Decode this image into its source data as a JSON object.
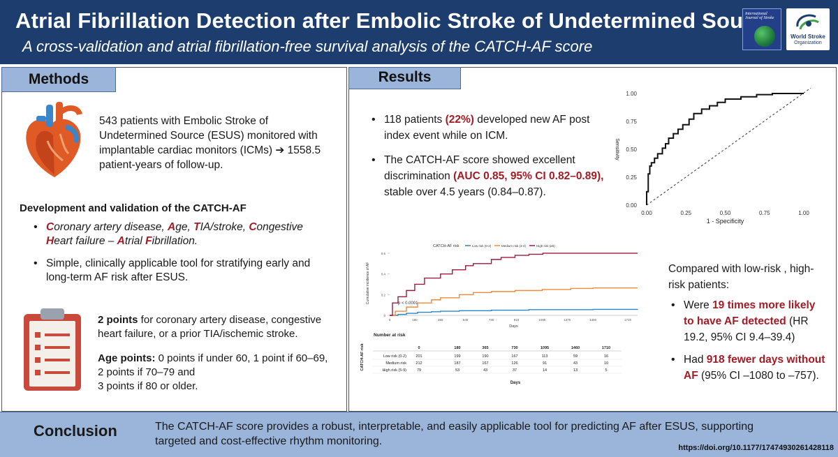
{
  "header": {
    "title": "Atrial Fibrillation Detection after Embolic Stroke of Undetermined Source",
    "subtitle": "A cross-validation and atrial fibrillation-free survival analysis of the CATCH-AF score",
    "journal_cover": "International Journal of Stroke",
    "wso_name": "World Stroke",
    "wso_name2": "Organization"
  },
  "methods": {
    "tab": "Methods",
    "intro": "543 patients with Embolic Stroke of Undetermined Source (ESUS) monitored with implantable cardiac monitors (ICMs) ➔ 1558.5 patient-years of follow-up.",
    "dev_title": "Development and validation of the CATCH-AF",
    "acronym": {
      "l1": "C",
      "t1": "oronary artery disease, ",
      "l2": "A",
      "t2": "ge, ",
      "l3": "T",
      "t3": "IA/stroke, ",
      "l4": "C",
      "t4": "ongestive ",
      "l5": "H",
      "t5": "eart failure – ",
      "l6": "A",
      "t6": "trial ",
      "l7": "F",
      "t7": "ibrillation."
    },
    "bullet2": "Simple, clinically applicable tool for stratifying early and long-term AF risk after ESUS.",
    "points1_bold": "2 points",
    "points1_rest": " for coronary artery disease, congestive heart failure, or a prior TIA/ischemic stroke.",
    "points2_bold": "Age points:",
    "points2_rest": " 0 points if under 60, 1 point if 60–69, 2 points if 70–79 and",
    "points2_line2": "3 points if 80 or older."
  },
  "results": {
    "tab": "Results",
    "b1_pre": "118 patients ",
    "b1_bold": "(22%)",
    "b1_post": " developed new AF post index event while on ICM.",
    "b2_pre": "The CATCH-AF score showed excellent discrimination ",
    "b2_bold": "(AUC 0.85, 95% CI 0.82–0.89),",
    "b2_post": " stable over 4.5 years (0.84–0.87).",
    "compare_intro": "Compared with low-risk , high-risk patients:",
    "c1_pre": "Were ",
    "c1_bold": "19 times more likely to have AF detected",
    "c1_post": " (HR 19.2, 95% CI 9.4–39.4)",
    "c2_pre": "Had ",
    "c2_bold": "918 fewer days without AF",
    "c2_post": " (95% CI –1080 to –757)."
  },
  "chart_data": [
    {
      "type": "line",
      "title": "",
      "xlabel": "1 - Specificity",
      "ylabel": "Sensitivity",
      "xlim": [
        0,
        1
      ],
      "ylim": [
        0,
        1
      ],
      "x_ticks": [
        "0.00",
        "0.25",
        "0.50",
        "0.75",
        "1.00"
      ],
      "y_ticks": [
        "0.00",
        "0.25",
        "0.50",
        "0.75",
        "1.00"
      ],
      "series": [
        {
          "name": "ROC",
          "x": [
            0.0,
            0.01,
            0.02,
            0.03,
            0.05,
            0.07,
            0.1,
            0.12,
            0.14,
            0.17,
            0.2,
            0.23,
            0.27,
            0.3,
            0.35,
            0.4,
            0.45,
            0.5,
            0.6,
            0.7,
            0.8,
            0.9,
            1.0
          ],
          "y": [
            0.0,
            0.12,
            0.28,
            0.35,
            0.38,
            0.42,
            0.46,
            0.51,
            0.55,
            0.6,
            0.64,
            0.68,
            0.72,
            0.77,
            0.82,
            0.86,
            0.89,
            0.92,
            0.95,
            0.97,
            0.99,
            1.0,
            1.0
          ]
        },
        {
          "name": "Reference",
          "x": [
            0,
            1
          ],
          "y": [
            0,
            1
          ]
        }
      ]
    },
    {
      "type": "line",
      "legend_title": "CATCH-AF risk",
      "xlabel": "Days",
      "ylabel": "Cumulative incidence of AF",
      "annotation": "p < 0.0001",
      "xlim": [
        0,
        1780
      ],
      "ylim": [
        0,
        0.62
      ],
      "x_ticks": [
        0,
        180,
        365,
        545,
        730,
        910,
        1095,
        1275,
        1460,
        1710
      ],
      "y_ticks": [
        0,
        0.2,
        0.4,
        0.6
      ],
      "series": [
        {
          "name": "Low risk (0-2)",
          "color": "#2a86c9",
          "x": [
            0,
            60,
            120,
            200,
            300,
            365,
            500,
            730,
            1000,
            1460,
            1780
          ],
          "y": [
            0,
            0.01,
            0.02,
            0.03,
            0.035,
            0.04,
            0.045,
            0.05,
            0.055,
            0.058,
            0.06
          ]
        },
        {
          "name": "Medium risk (3-4)",
          "color": "#ef8a3a",
          "x": [
            0,
            40,
            120,
            200,
            300,
            365,
            500,
            600,
            730,
            900,
            1095,
            1300,
            1460,
            1780
          ],
          "y": [
            0,
            0.04,
            0.08,
            0.12,
            0.15,
            0.17,
            0.2,
            0.22,
            0.23,
            0.24,
            0.25,
            0.26,
            0.265,
            0.265
          ]
        },
        {
          "name": "High risk (≥5)",
          "color": "#9c1b3c",
          "x": [
            0,
            20,
            60,
            120,
            180,
            250,
            365,
            450,
            545,
            600,
            730,
            800,
            900,
            1000,
            1100,
            1780
          ],
          "y": [
            0,
            0.12,
            0.18,
            0.24,
            0.3,
            0.36,
            0.4,
            0.44,
            0.48,
            0.5,
            0.54,
            0.56,
            0.58,
            0.59,
            0.6,
            0.6
          ]
        }
      ]
    },
    {
      "type": "table",
      "title": "Number at risk",
      "row_axis_label": "CATCH-AF risk",
      "xlabel": "Days",
      "columns": [
        "0",
        "180",
        "365",
        "730",
        "1095",
        "1460",
        "1710"
      ],
      "rows": [
        {
          "label": "Low risk (0-2)",
          "values": [
            "201",
            "199",
            "190",
            "167",
            "113",
            "59",
            "16"
          ]
        },
        {
          "label": "Medium risk",
          "values": [
            "212",
            "187",
            "167",
            "126",
            "91",
            "43",
            "10"
          ]
        },
        {
          "label": "High risk (5-9)",
          "values": [
            "79",
            "53",
            "43",
            "37",
            "14",
            "13",
            "5"
          ]
        }
      ]
    }
  ],
  "conclusion": {
    "label": "Conclusion",
    "text": "The CATCH-AF score provides a robust, interpretable, and easily applicable tool for predicting AF after ESUS, supporting targeted and cost-effective rhythm monitoring.",
    "doi": "https://doi.org/10.1177/17474930261428118"
  },
  "colors": {
    "header_bg": "#1d3d6e",
    "tab_bg": "#9ab5d9",
    "emphasis_red": "#a31c24"
  }
}
